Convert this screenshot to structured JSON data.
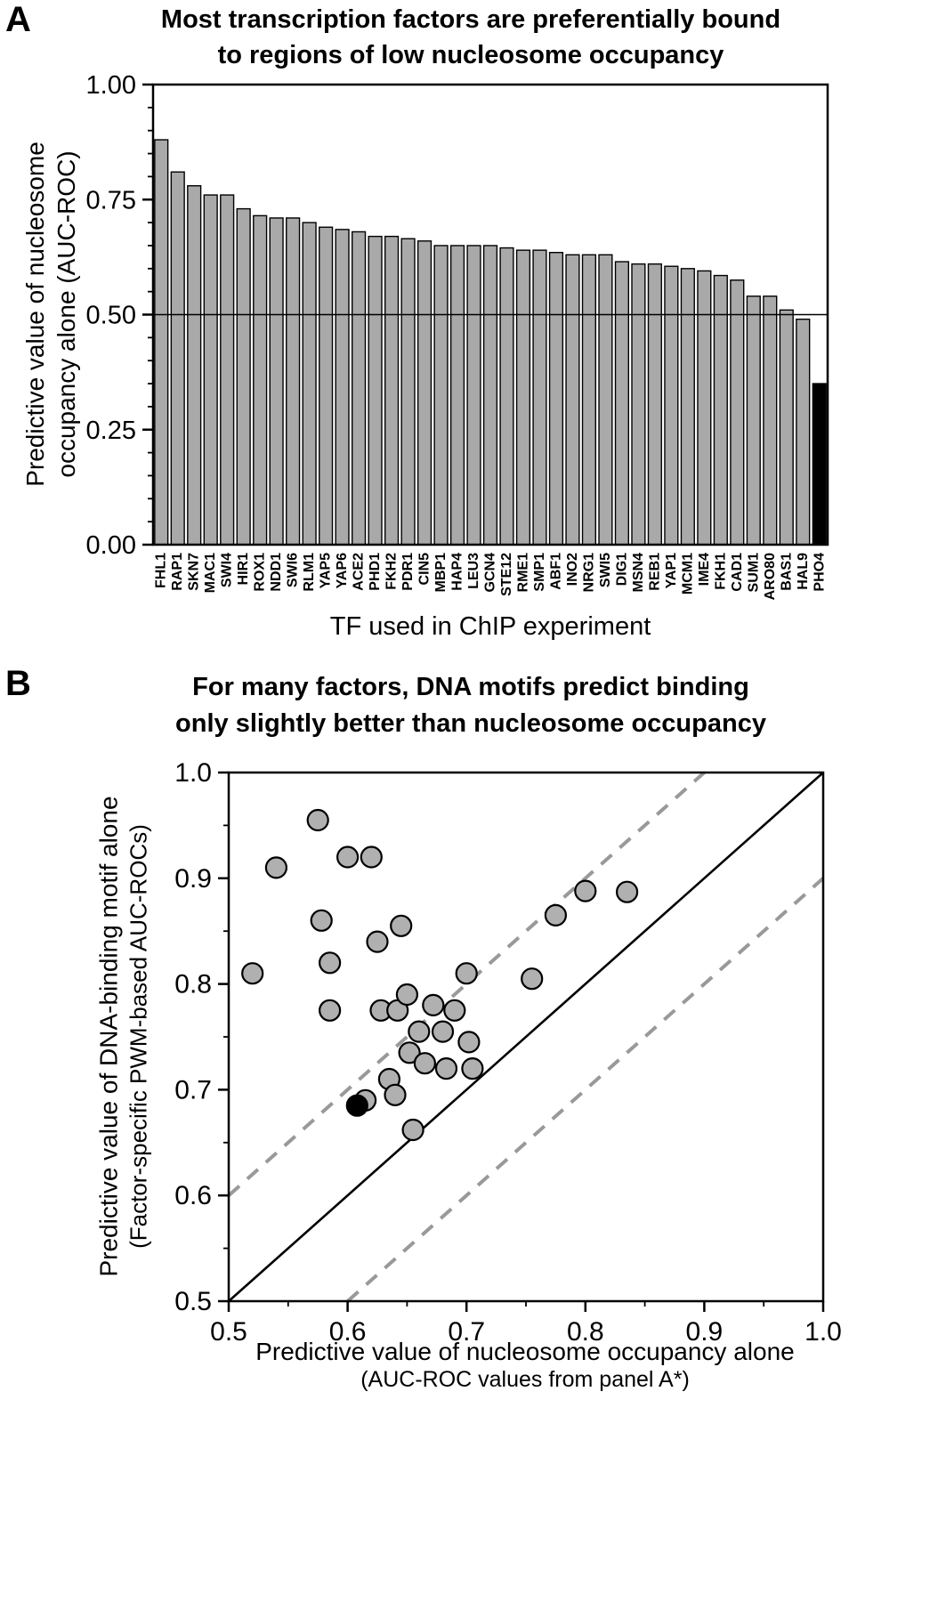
{
  "chart_data": [
    {
      "type": "bar",
      "panel_label": "A",
      "title_lines": [
        "Most transcription factors are preferentially bound",
        "to regions of low nucleosome occupancy"
      ],
      "ylabel_lines": [
        "Predictive value of nucleosome",
        "occupancy alone (AUC-ROC)"
      ],
      "xlabel": "TF used in ChIP experiment",
      "ylim": [
        0,
        1
      ],
      "ytick_values": [
        0,
        0.25,
        0.5,
        0.75,
        1
      ],
      "ytick_labels": [
        "0.00",
        "0.25",
        "0.50",
        "0.75",
        "1.00"
      ],
      "minor_tick_step": 0.05,
      "reference_line_y": 0.5,
      "bar_color": "#a9a9a9",
      "bar_edge_color": "#000000",
      "highlight_category": "PHO4",
      "highlight_color": "#000000",
      "grid": false,
      "categories": [
        "FHL1",
        "RAP1",
        "SKN7",
        "MAC1",
        "SWI4",
        "HIR1",
        "ROX1",
        "NDD1",
        "SWI6",
        "RLM1",
        "YAP5",
        "YAP6",
        "ACE2",
        "PHD1",
        "FKH2",
        "PDR1",
        "CIN5",
        "MBP1",
        "HAP4",
        "LEU3",
        "GCN4",
        "STE12",
        "RME1",
        "SMP1",
        "ABF1",
        "INO2",
        "NRG1",
        "SWI5",
        "DIG1",
        "MSN4",
        "REB1",
        "YAP1",
        "MCM1",
        "IME4",
        "FKH1",
        "CAD1",
        "SUM1",
        "ARO80",
        "BAS1",
        "HAL9",
        "PHO4"
      ],
      "values": [
        0.88,
        0.81,
        0.78,
        0.76,
        0.76,
        0.73,
        0.715,
        0.71,
        0.71,
        0.7,
        0.69,
        0.685,
        0.68,
        0.67,
        0.67,
        0.665,
        0.66,
        0.65,
        0.65,
        0.65,
        0.65,
        0.645,
        0.64,
        0.64,
        0.635,
        0.63,
        0.63,
        0.63,
        0.615,
        0.61,
        0.61,
        0.605,
        0.6,
        0.595,
        0.585,
        0.575,
        0.54,
        0.54,
        0.51,
        0.49,
        0.35
      ]
    },
    {
      "type": "scatter",
      "panel_label": "B",
      "title_lines": [
        "For many factors, DNA motifs predict binding",
        "only slightly better than nucleosome occupancy"
      ],
      "ylabel_lines": [
        "Predictive value of DNA-binding motif alone",
        "(Factor-specific PWM-based AUC-ROCs)"
      ],
      "xlabel_lines": [
        "Predictive value of nucleosome occupancy alone",
        "(AUC-ROC values from panel A*)"
      ],
      "xlim": [
        0.5,
        1.0
      ],
      "ylim": [
        0.5,
        1.0
      ],
      "tick_values": [
        0.5,
        0.6,
        0.7,
        0.8,
        0.9,
        1.0
      ],
      "tick_labels": [
        "0.5",
        "0.6",
        "0.7",
        "0.8",
        "0.9",
        "1.0"
      ],
      "minor_tick_step": 0.05,
      "identity_line": true,
      "dashed_offsets": [
        0.1,
        -0.1
      ],
      "dashed_color": "#999999",
      "point_color": "#b0b0b0",
      "point_edge_color": "#000000",
      "grid": false,
      "points": [
        [
          0.52,
          0.81
        ],
        [
          0.54,
          0.91
        ],
        [
          0.575,
          0.955
        ],
        [
          0.578,
          0.86
        ],
        [
          0.585,
          0.82
        ],
        [
          0.585,
          0.775
        ],
        [
          0.6,
          0.92
        ],
        [
          0.615,
          0.69
        ],
        [
          0.62,
          0.92
        ],
        [
          0.625,
          0.84
        ],
        [
          0.628,
          0.775
        ],
        [
          0.635,
          0.71
        ],
        [
          0.64,
          0.695
        ],
        [
          0.642,
          0.775
        ],
        [
          0.645,
          0.855
        ],
        [
          0.65,
          0.79
        ],
        [
          0.652,
          0.735
        ],
        [
          0.655,
          0.662
        ],
        [
          0.66,
          0.755
        ],
        [
          0.665,
          0.725
        ],
        [
          0.672,
          0.78
        ],
        [
          0.68,
          0.755
        ],
        [
          0.683,
          0.72
        ],
        [
          0.69,
          0.775
        ],
        [
          0.7,
          0.81
        ],
        [
          0.702,
          0.745
        ],
        [
          0.705,
          0.72
        ],
        [
          0.755,
          0.805
        ],
        [
          0.775,
          0.865
        ],
        [
          0.8,
          0.888
        ],
        [
          0.835,
          0.887
        ]
      ],
      "highlight_point": [
        0.608,
        0.685
      ],
      "highlight_point_color": "#000000"
    }
  ]
}
